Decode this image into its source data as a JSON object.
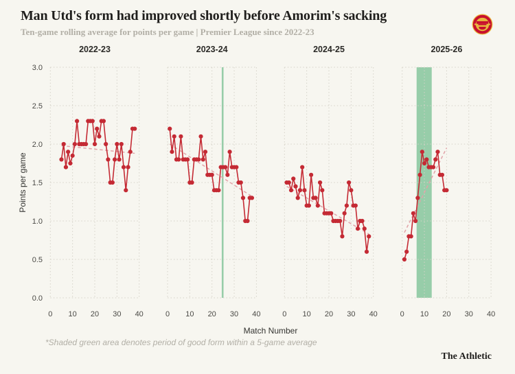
{
  "header": {
    "title": "Man Utd's form had improved shortly before Amorim's sacking",
    "subtitle": "Ten-game rolling average for points per game | Premier League since 2022-23"
  },
  "footnote": "*Shaded green area denotes period of good form within a 5-game average",
  "brand": "The Athletic",
  "colors": {
    "background": "#f7f6f0",
    "line": "#c42a34",
    "point": "#c42a34",
    "trend": "#e2a3a9",
    "band": "#97cda9",
    "grid": "#d5d2c8",
    "tick_text": "#4a4945",
    "season_text": "#2b2a27",
    "title_text": "#1f1e1c",
    "muted_text": "#b2afa6"
  },
  "chart_data": {
    "type": "line",
    "title": "Man Utd's form had improved shortly before Amorim's sacking",
    "subtitle": "Ten-game rolling average for points per game | Premier League since 2022-23",
    "xlabel": "Match Number",
    "ylabel": "Points per game",
    "xlim": [
      0,
      40
    ],
    "ylim": [
      0.0,
      3.0
    ],
    "x_ticks": [
      0,
      10,
      20,
      30,
      40
    ],
    "y_ticks": [
      0.0,
      0.5,
      1.0,
      1.5,
      2.0,
      2.5,
      3.0
    ],
    "grid": "dotted",
    "legend": "none",
    "series_style": "red dots connected by line, with dashed linear trend per facet",
    "facets": [
      {
        "season": "2022-23",
        "x_start": 5,
        "values": [
          1.8,
          2.0,
          1.7,
          1.9,
          1.75,
          1.85,
          2.0,
          2.3,
          2.0,
          2.0,
          2.0,
          2.0,
          2.3,
          2.3,
          2.3,
          2.0,
          2.2,
          2.1,
          2.3,
          2.3,
          2.0,
          1.8,
          1.5,
          1.5,
          1.8,
          2.0,
          1.8,
          2.0,
          1.7,
          1.4,
          1.7,
          1.9,
          2.2,
          2.2
        ],
        "trend": {
          "x1": 5,
          "v1": 1.98,
          "x2": 38,
          "v2": 1.88
        },
        "band": null
      },
      {
        "season": "2023-24",
        "x_start": 1,
        "values": [
          2.2,
          1.9,
          2.1,
          1.8,
          1.8,
          2.1,
          1.8,
          1.8,
          1.8,
          1.5,
          1.5,
          1.8,
          1.8,
          1.8,
          2.1,
          1.8,
          1.9,
          1.6,
          1.6,
          1.6,
          1.4,
          1.4,
          1.4,
          1.7,
          1.7,
          1.7,
          1.6,
          1.9,
          1.7,
          1.7,
          1.7,
          1.5,
          1.5,
          1.3,
          1.0,
          1.0,
          1.3,
          1.3
        ],
        "trend": {
          "x1": 1,
          "v1": 2.0,
          "x2": 38,
          "v2": 1.32
        },
        "band": {
          "x1": 24.4,
          "x2": 25.2
        }
      },
      {
        "season": "2024-25",
        "x_start": 1,
        "values": [
          1.5,
          1.5,
          1.4,
          1.55,
          1.45,
          1.3,
          1.4,
          1.7,
          1.4,
          1.2,
          1.2,
          1.6,
          1.3,
          1.3,
          1.2,
          1.5,
          1.4,
          1.1,
          1.1,
          1.1,
          1.1,
          1.0,
          1.0,
          1.0,
          1.0,
          0.8,
          1.1,
          1.2,
          1.5,
          1.4,
          1.2,
          1.2,
          0.9,
          1.0,
          1.0,
          0.9,
          0.6,
          0.8
        ],
        "trend": {
          "x1": 1,
          "v1": 1.45,
          "x2": 38,
          "v2": 0.83
        },
        "band": null
      },
      {
        "season": "2025-26",
        "x_start": 1,
        "values": [
          0.5,
          0.6,
          0.8,
          0.8,
          1.1,
          1.0,
          1.3,
          1.6,
          1.9,
          1.75,
          1.8,
          1.7,
          1.7,
          1.7,
          1.8,
          1.9,
          1.6,
          1.6,
          1.4,
          1.4
        ],
        "trend": {
          "x1": 1,
          "v1": 0.85,
          "x2": 20,
          "v2": 1.95
        },
        "band": {
          "x1": 6.5,
          "x2": 13.3
        }
      }
    ]
  }
}
